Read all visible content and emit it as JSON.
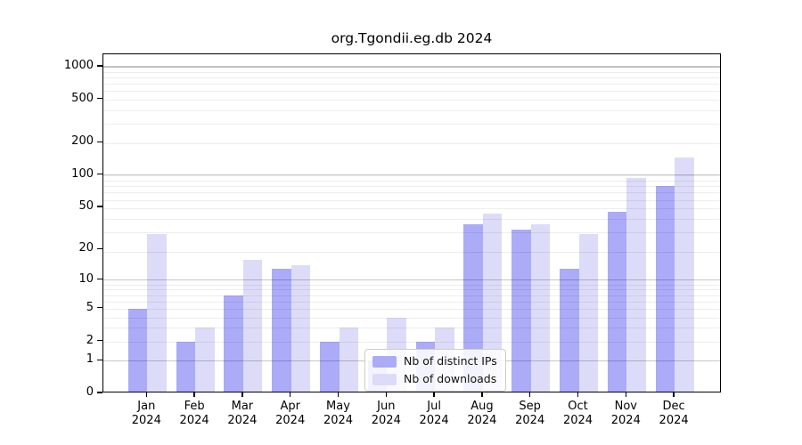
{
  "chart_data": {
    "type": "bar",
    "title": "org.Tgondii.eg.db 2024",
    "categories": [
      "Jan 2024",
      "Feb 2024",
      "Mar 2024",
      "Apr 2024",
      "May 2024",
      "Jun 2024",
      "Jul 2024",
      "Aug 2024",
      "Sep 2024",
      "Oct 2024",
      "Nov 2024",
      "Dec 2024"
    ],
    "series": [
      {
        "name": "Nb of distinct IPs",
        "color": "#ababf8",
        "values": [
          5,
          2,
          7,
          13,
          2,
          1,
          2,
          35,
          31,
          13,
          46,
          79
        ]
      },
      {
        "name": "Nb of downloads",
        "color": "#dcdcf9",
        "values": [
          28,
          3,
          16,
          14,
          3,
          4,
          3,
          44,
          35,
          28,
          94,
          146
        ]
      }
    ],
    "yscale": "log10(1+x)",
    "yticks": [
      0,
      1,
      2,
      5,
      10,
      20,
      50,
      100,
      200,
      500,
      1000
    ],
    "ymajor_gridlines": [
      1,
      10,
      100,
      1000
    ],
    "ylim": [
      0,
      1100
    ],
    "xlabel": "",
    "ylabel": "",
    "grid": "minor and major horizontal gridlines drawn above bars",
    "legend_position": "inside bottom-center",
    "style": {
      "background": "#ffffff",
      "spine": "#000000",
      "grid_minor": "#ededed",
      "grid_major": "#c7c7c7",
      "text": "#000000"
    }
  }
}
